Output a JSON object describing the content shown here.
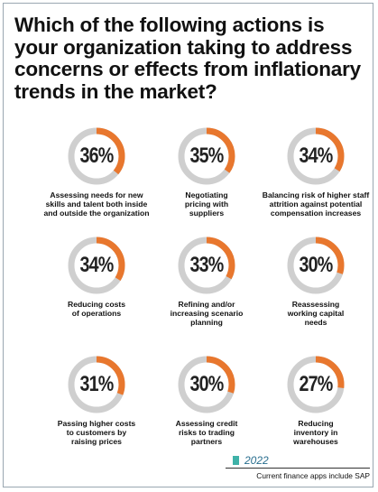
{
  "title": "Which of the following actions is your organization taking to address concerns or effects from inflationary trends in the market?",
  "legend": {
    "label": "2022",
    "color": "#3fb2a8"
  },
  "caption": "Current finance apps include SAP",
  "colors": {
    "accent": "#e8772e",
    "track": "#cfcfcf"
  },
  "chart_data": {
    "type": "donut-grid",
    "title": "Which of the following actions is your organization taking to address concerns or effects from inflationary trends in the market?",
    "series": [
      {
        "name": "2022",
        "values": [
          36,
          35,
          34,
          34,
          33,
          30,
          31,
          30,
          27
        ]
      }
    ],
    "categories": [
      "Assessing needs  for new skills and talent both inside and outside the organization",
      "Negotiating pricing with suppliers",
      "Balancing risk  of higher staff attrition against potential compensation increases",
      "Reducing costs of operations",
      "Refining and/or increasing scenario planning",
      "Reassessing working capital needs",
      "Passing higher costs to customers by raising prices",
      "Assessing credit risks to trading partners",
      "Reducing inventory in warehouses"
    ],
    "items": [
      {
        "value": 36,
        "label": "36%",
        "text": "Assessing needs  for new\nskills and talent both inside\nand outside the organization"
      },
      {
        "value": 35,
        "label": "35%",
        "text": "Negotiating\npricing with\nsuppliers"
      },
      {
        "value": 34,
        "label": "34%",
        "text": "Balancing risk  of higher staff\nattrition against potential\ncompensation increases"
      },
      {
        "value": 34,
        "label": "34%",
        "text": "Reducing costs\nof operations"
      },
      {
        "value": 33,
        "label": "33%",
        "text": "Refining and/or\nincreasing scenario\nplanning"
      },
      {
        "value": 30,
        "label": "30%",
        "text": "Reassessing\nworking capital\nneeds"
      },
      {
        "value": 31,
        "label": "31%",
        "text": "Passing higher costs\nto customers by\nraising prices"
      },
      {
        "value": 30,
        "label": "30%",
        "text": "Assessing credit\nrisks to trading\npartners"
      },
      {
        "value": 27,
        "label": "27%",
        "text": "Reducing\ninventory in\nwarehouses"
      }
    ]
  }
}
